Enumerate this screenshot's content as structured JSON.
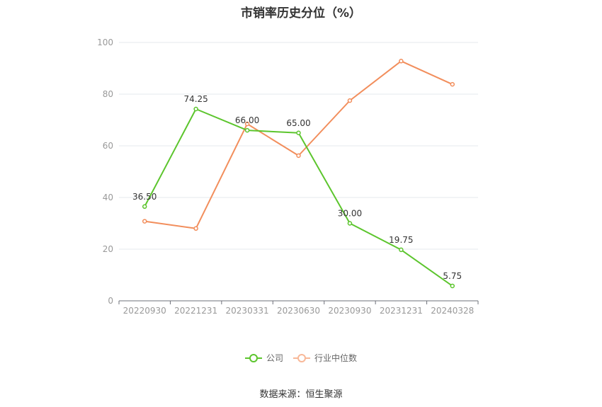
{
  "chart_data": {
    "type": "line",
    "title": "市销率历史分位（%）",
    "categories": [
      "20220930",
      "20221231",
      "20230331",
      "20230630",
      "20230930",
      "20231231",
      "20240328"
    ],
    "ylim": [
      0,
      100
    ],
    "yticks": [
      0,
      20,
      40,
      60,
      80,
      100
    ],
    "grid": true,
    "legend_position": "bottom",
    "series": [
      {
        "name": "公司",
        "color": "#5cc52d",
        "values": [
          36.5,
          74.25,
          66.0,
          65.0,
          30.0,
          19.75,
          5.75
        ],
        "labels": [
          "36.50",
          "74.25",
          "66.00",
          "65.00",
          "30.00",
          "19.75",
          "5.75"
        ]
      },
      {
        "name": "行业中位数",
        "color": "#f28e5c",
        "values": [
          30.8,
          28.0,
          68.5,
          56.2,
          77.5,
          92.8,
          83.8
        ]
      }
    ]
  },
  "source": "数据来源：恒生聚源"
}
